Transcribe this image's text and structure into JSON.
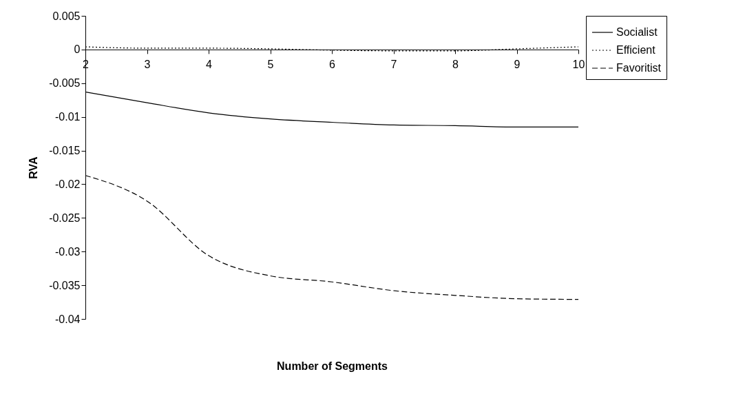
{
  "chart_data": {
    "type": "line",
    "xlabel": "Number of Segments",
    "ylabel": "RVA",
    "x": [
      2,
      3,
      4,
      5,
      6,
      7,
      8,
      9,
      10
    ],
    "series": [
      {
        "name": "Socialist",
        "color": "#000000",
        "line_style": "solid",
        "values": [
          -0.0063,
          -0.0079,
          -0.0094,
          -0.0103,
          -0.0108,
          -0.0112,
          -0.0113,
          -0.0115,
          -0.0115
        ]
      },
      {
        "name": "Efficient",
        "color": "#000000",
        "line_style": "dotted",
        "values": [
          0.0004,
          0.0002,
          0.0002,
          0.0001,
          -0.0001,
          -0.0002,
          -0.0002,
          0.0001,
          0.0004
        ]
      },
      {
        "name": "Favoritist",
        "color": "#000000",
        "line_style": "dashed",
        "values": [
          -0.0187,
          -0.0225,
          -0.0306,
          -0.0336,
          -0.0345,
          -0.0358,
          -0.0365,
          -0.037,
          -0.0371
        ]
      }
    ],
    "xlim": [
      2,
      10
    ],
    "xticks": [
      2,
      3,
      4,
      5,
      6,
      7,
      8,
      9,
      10
    ],
    "ylim": [
      -0.04,
      0.005
    ],
    "yticks": [
      -0.04,
      -0.035,
      -0.03,
      -0.025,
      -0.02,
      -0.015,
      -0.01,
      -0.005,
      0,
      0.005
    ],
    "grid": false,
    "legend": "right",
    "marker": "none"
  }
}
